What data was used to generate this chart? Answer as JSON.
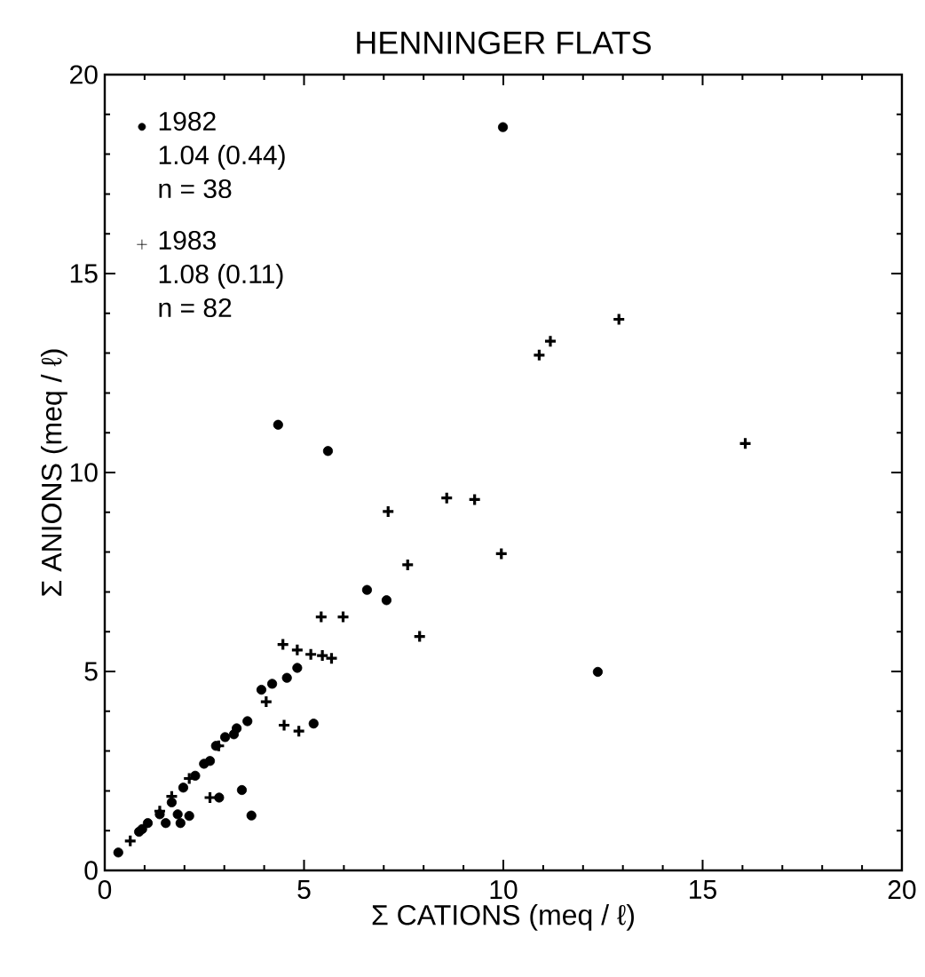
{
  "chart_data": {
    "type": "scatter",
    "title": "HENNINGER FLATS",
    "xlabel": "Σ CATIONS (meq / ℓ)",
    "ylabel": "Σ ANIONS (meq / ℓ)",
    "xlim": [
      0,
      20
    ],
    "ylim": [
      0,
      20
    ],
    "xticks": [
      0,
      5,
      10,
      15,
      20
    ],
    "yticks": [
      0,
      5,
      10,
      15,
      20
    ],
    "grid": false,
    "legend": "top left",
    "annotations": [
      "1.04 (0.44)",
      "n = 38",
      "1.08 (0.11)",
      "n = 82"
    ],
    "series": [
      {
        "name": "1982",
        "color": "#000000",
        "marker": "circle",
        "x": [
          9.99,
          4.35,
          5.6,
          6.58,
          7.07,
          12.37,
          4.83,
          4.57,
          4.2,
          3.93,
          5.24,
          3.58,
          3.31,
          3.02,
          2.79,
          2.64,
          2.27,
          1.97,
          1.68,
          1.38,
          1.08,
          0.86,
          3.44,
          2.87,
          3.68,
          2.12,
          1.9,
          1.83,
          0.34,
          0.94,
          2.49,
          3.24,
          1.53
        ],
        "values": [
          18.68,
          11.2,
          10.54,
          7.05,
          6.79,
          4.99,
          5.09,
          4.84,
          4.69,
          4.54,
          3.69,
          3.75,
          3.57,
          3.35,
          3.13,
          2.75,
          2.38,
          2.08,
          1.71,
          1.41,
          1.19,
          0.97,
          2.02,
          1.83,
          1.38,
          1.37,
          1.19,
          1.41,
          0.45,
          1.04,
          2.68,
          3.42,
          1.19
        ]
      },
      {
        "name": "1983",
        "color": "#000000",
        "marker": "cross",
        "x": [
          12.9,
          11.18,
          10.9,
          16.07,
          7.11,
          8.58,
          9.28,
          9.95,
          7.6,
          7.9,
          5.43,
          5.98,
          4.47,
          4.83,
          5.17,
          5.46,
          5.69,
          4.05,
          4.5,
          4.87,
          0.64,
          1.38,
          1.68,
          2.12,
          2.86,
          2.64
        ],
        "values": [
          13.85,
          13.3,
          12.95,
          10.73,
          9.02,
          9.36,
          9.32,
          7.96,
          7.68,
          5.88,
          6.37,
          6.37,
          5.68,
          5.54,
          5.43,
          5.4,
          5.33,
          4.24,
          3.65,
          3.5,
          0.74,
          1.49,
          1.86,
          2.31,
          3.13,
          1.83
        ]
      }
    ]
  }
}
